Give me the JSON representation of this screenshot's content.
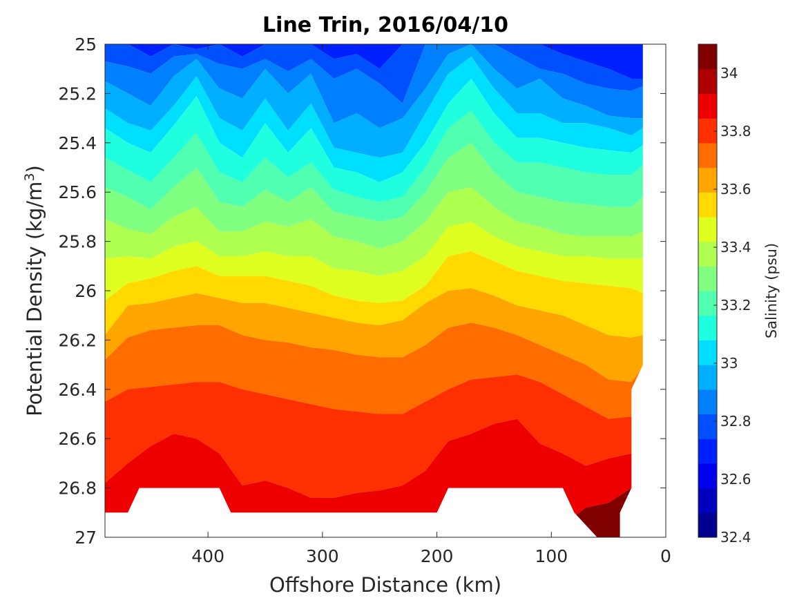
{
  "chart_data": {
    "type": "heatmap",
    "subtype": "filled-contour",
    "title": "Line Trin, 2016/04/10",
    "xlabel": "Offshore Distance (km)",
    "ylabel_main": "Potential Density (kg/m",
    "ylabel_sup": "3",
    "ylabel_close": ")",
    "xlim": [
      490,
      0
    ],
    "ylim": [
      25,
      27
    ],
    "x_direction": "reversed",
    "y_direction": "reversed",
    "x_ticks": [
      400,
      300,
      200,
      100,
      0
    ],
    "x_tick_labels": [
      "400",
      "300",
      "200",
      "100",
      "0"
    ],
    "y_ticks": [
      25,
      25.2,
      25.4,
      25.6,
      25.8,
      26,
      26.2,
      26.4,
      26.6,
      26.8,
      27
    ],
    "y_tick_labels": [
      "25",
      "25.2",
      "25.4",
      "25.6",
      "25.8",
      "26",
      "26.2",
      "26.4",
      "26.6",
      "26.8",
      "27"
    ],
    "colorbar": {
      "label": "Salinity (psu)",
      "range": [
        32.4,
        34.1
      ],
      "tick_values": [
        32.4,
        32.6,
        32.8,
        33,
        33.2,
        33.4,
        33.6,
        33.8,
        34
      ],
      "tick_labels": [
        "32.4",
        "32.6",
        "32.8",
        "33",
        "33.2",
        "33.4",
        "33.6",
        "33.8",
        "34"
      ],
      "levels": [
        32.4,
        32.5,
        32.6,
        32.7,
        32.8,
        32.9,
        33.0,
        33.1,
        33.2,
        33.3,
        33.4,
        33.5,
        33.6,
        33.7,
        33.8,
        33.9,
        34.0,
        34.1
      ],
      "colors": [
        "#00008f",
        "#0000bf",
        "#0000ef",
        "#0020ff",
        "#0050ff",
        "#0080ff",
        "#00afff",
        "#00dfff",
        "#1fffdf",
        "#50ffaf",
        "#80ff80",
        "#afff50",
        "#dfff20",
        "#ffd900",
        "#ffa500",
        "#ff6d00",
        "#ff3000",
        "#ef0000",
        "#ae0000",
        "#800000"
      ]
    },
    "contour_boundaries": {
      "x": [
        490,
        470,
        450,
        430,
        410,
        390,
        370,
        350,
        330,
        310,
        290,
        270,
        250,
        230,
        210,
        190,
        170,
        150,
        130,
        110,
        90,
        70,
        50,
        30,
        20
      ],
      "levels": [
        {
          "salinity": 32.7,
          "y": [
            25.0,
            25.0,
            25.0,
            25.0,
            25.0,
            25.0,
            25.0,
            25.0,
            25.0,
            25.0,
            25.0,
            25.0,
            25.0,
            25.0,
            25.0,
            25.0,
            25.0,
            25.0,
            25.0,
            25.0,
            25.0,
            25.0,
            25.0,
            25.0,
            25.0
          ]
        },
        {
          "salinity": 32.8,
          "y": [
            25.0,
            25.0,
            25.05,
            25.0,
            25.02,
            25.0,
            25.05,
            25.0,
            25.0,
            25.0,
            25.06,
            25.04,
            25.1,
            25.0,
            25.0,
            25.0,
            25.0,
            25.0,
            25.0,
            25.0,
            25.04,
            25.07,
            25.1,
            25.14,
            25.14
          ]
        },
        {
          "salinity": 32.9,
          "y": [
            25.07,
            25.09,
            25.12,
            25.05,
            25.04,
            25.08,
            25.1,
            25.06,
            25.11,
            25.06,
            25.14,
            25.1,
            25.16,
            25.24,
            25.0,
            25.0,
            25.0,
            25.0,
            25.05,
            25.1,
            25.12,
            25.16,
            25.18,
            25.19,
            25.17
          ]
        },
        {
          "salinity": 33.0,
          "y": [
            25.15,
            25.2,
            25.25,
            25.13,
            25.06,
            25.18,
            25.22,
            25.1,
            25.2,
            25.12,
            25.32,
            25.28,
            25.34,
            25.3,
            25.18,
            25.04,
            25.0,
            25.1,
            25.18,
            25.14,
            25.22,
            25.25,
            25.29,
            25.3,
            25.3
          ]
        },
        {
          "salinity": 33.1,
          "y": [
            25.26,
            25.32,
            25.35,
            25.25,
            25.13,
            25.3,
            25.35,
            25.22,
            25.35,
            25.24,
            25.42,
            25.44,
            25.46,
            25.44,
            25.28,
            25.12,
            25.05,
            25.18,
            25.28,
            25.28,
            25.32,
            25.32,
            25.34,
            25.37,
            25.34
          ]
        },
        {
          "salinity": 33.2,
          "y": [
            25.34,
            25.4,
            25.44,
            25.33,
            25.21,
            25.4,
            25.46,
            25.32,
            25.44,
            25.34,
            25.5,
            25.52,
            25.56,
            25.52,
            25.4,
            25.24,
            25.14,
            25.28,
            25.38,
            25.38,
            25.4,
            25.42,
            25.43,
            25.44,
            25.41
          ]
        },
        {
          "salinity": 33.3,
          "y": [
            25.46,
            25.51,
            25.56,
            25.46,
            25.36,
            25.52,
            25.56,
            25.46,
            25.54,
            25.48,
            25.59,
            25.62,
            25.64,
            25.62,
            25.5,
            25.34,
            25.27,
            25.4,
            25.48,
            25.48,
            25.5,
            25.52,
            25.53,
            25.53,
            25.49
          ]
        },
        {
          "salinity": 33.4,
          "y": [
            25.58,
            25.62,
            25.67,
            25.58,
            25.5,
            25.64,
            25.66,
            25.59,
            25.64,
            25.58,
            25.68,
            25.7,
            25.72,
            25.7,
            25.6,
            25.46,
            25.4,
            25.52,
            25.6,
            25.62,
            25.64,
            25.65,
            25.66,
            25.66,
            25.62
          ]
        },
        {
          "salinity": 33.5,
          "y": [
            25.71,
            25.75,
            25.77,
            25.7,
            25.66,
            25.76,
            25.76,
            25.72,
            25.74,
            25.71,
            25.78,
            25.8,
            25.83,
            25.8,
            25.72,
            25.6,
            25.58,
            25.66,
            25.72,
            25.74,
            25.77,
            25.78,
            25.78,
            25.78,
            25.76
          ]
        },
        {
          "salinity": 33.6,
          "y": [
            25.87,
            25.86,
            25.87,
            25.82,
            25.8,
            25.86,
            25.86,
            25.84,
            25.86,
            25.86,
            25.91,
            25.92,
            25.94,
            25.92,
            25.86,
            25.74,
            25.72,
            25.78,
            25.82,
            25.84,
            25.86,
            25.86,
            25.87,
            25.87,
            25.87
          ]
        },
        {
          "salinity": 33.7,
          "y": [
            26.04,
            25.97,
            25.95,
            25.92,
            25.9,
            25.94,
            25.94,
            25.94,
            25.96,
            25.98,
            26.02,
            26.04,
            26.05,
            26.04,
            25.98,
            25.86,
            25.84,
            25.88,
            25.92,
            25.94,
            25.96,
            25.97,
            25.98,
            25.99,
            26.01
          ]
        },
        {
          "salinity": 33.8,
          "y": [
            26.18,
            26.06,
            26.05,
            26.03,
            26.01,
            26.03,
            26.05,
            26.05,
            26.07,
            26.09,
            26.11,
            26.13,
            26.14,
            26.12,
            26.05,
            26.0,
            25.99,
            26.02,
            26.06,
            26.08,
            26.1,
            26.14,
            26.18,
            26.19,
            26.18
          ]
        },
        {
          "salinity": 33.9,
          "y": [
            26.28,
            26.19,
            26.16,
            26.15,
            26.14,
            26.14,
            26.18,
            26.2,
            26.21,
            26.23,
            26.24,
            26.26,
            26.27,
            26.27,
            26.22,
            26.15,
            26.13,
            26.15,
            26.18,
            26.22,
            26.26,
            26.3,
            26.36,
            26.37,
            26.31
          ]
        },
        {
          "salinity": 34.0,
          "y": [
            26.45,
            26.4,
            26.39,
            26.38,
            26.37,
            26.37,
            26.4,
            26.42,
            26.44,
            26.46,
            26.48,
            26.49,
            26.5,
            26.5,
            26.45,
            26.4,
            26.36,
            26.35,
            26.34,
            26.37,
            26.42,
            26.47,
            26.52,
            26.51,
            26.51
          ]
        },
        {
          "salinity": 34.1,
          "y": [
            26.78,
            26.7,
            26.63,
            26.58,
            26.6,
            26.66,
            26.79,
            26.77,
            26.8,
            26.84,
            26.84,
            26.82,
            26.81,
            26.79,
            26.73,
            26.61,
            26.58,
            26.54,
            26.52,
            26.62,
            26.66,
            26.71,
            26.68,
            26.66,
            26.66
          ]
        },
        {
          "salinity": 34.2,
          "y": [
            27.0,
            27.0,
            27.0,
            27.0,
            27.0,
            27.0,
            27.0,
            27.0,
            27.0,
            27.0,
            27.0,
            27.0,
            27.0,
            27.0,
            27.0,
            27.0,
            27.0,
            27.0,
            27.0,
            27.0,
            26.95,
            26.88,
            26.86,
            26.8,
            27.0
          ]
        }
      ]
    },
    "no_data_regions": [
      {
        "name": "bottom-gap",
        "points": [
          [
            490,
            26.9
          ],
          [
            470,
            26.9
          ],
          [
            460,
            26.8
          ],
          [
            390,
            26.8
          ],
          [
            380,
            26.9
          ],
          [
            200,
            26.9
          ],
          [
            190,
            26.8
          ],
          [
            90,
            26.8
          ],
          [
            80,
            26.9
          ],
          [
            60,
            27.0
          ],
          [
            490,
            27.0
          ]
        ]
      },
      {
        "name": "right-gap",
        "points": [
          [
            20,
            25.0
          ],
          [
            0,
            25.0
          ],
          [
            0,
            27.0
          ],
          [
            40,
            27.0
          ],
          [
            40,
            26.9
          ],
          [
            30,
            26.8
          ],
          [
            30,
            26.4
          ],
          [
            20,
            26.3
          ]
        ]
      }
    ]
  }
}
